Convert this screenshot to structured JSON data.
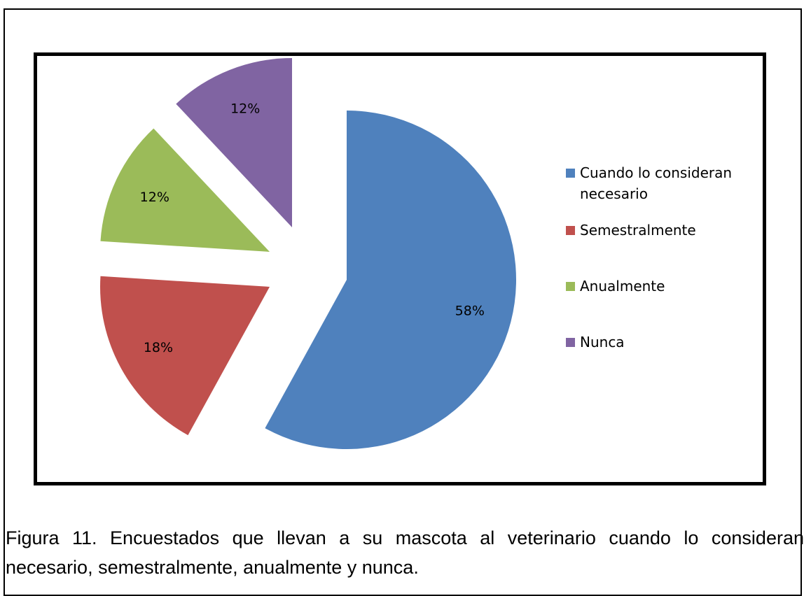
{
  "chart_data": {
    "type": "pie",
    "categories": [
      "Cuando lo consideran necesario",
      "Semestralmente",
      "Anualmente",
      "Nunca"
    ],
    "values": [
      58,
      18,
      12,
      12
    ],
    "value_labels": [
      "58%",
      "18%",
      "12%",
      "12%"
    ],
    "colors": [
      "#4f81bd",
      "#c0504d",
      "#9bbb59",
      "#8064a2"
    ],
    "legend": "right"
  },
  "caption": "Figura 11. Encuestados que llevan a su mascota al veterinario cuando lo consideran necesario, semestralmente, anualmente y nunca."
}
